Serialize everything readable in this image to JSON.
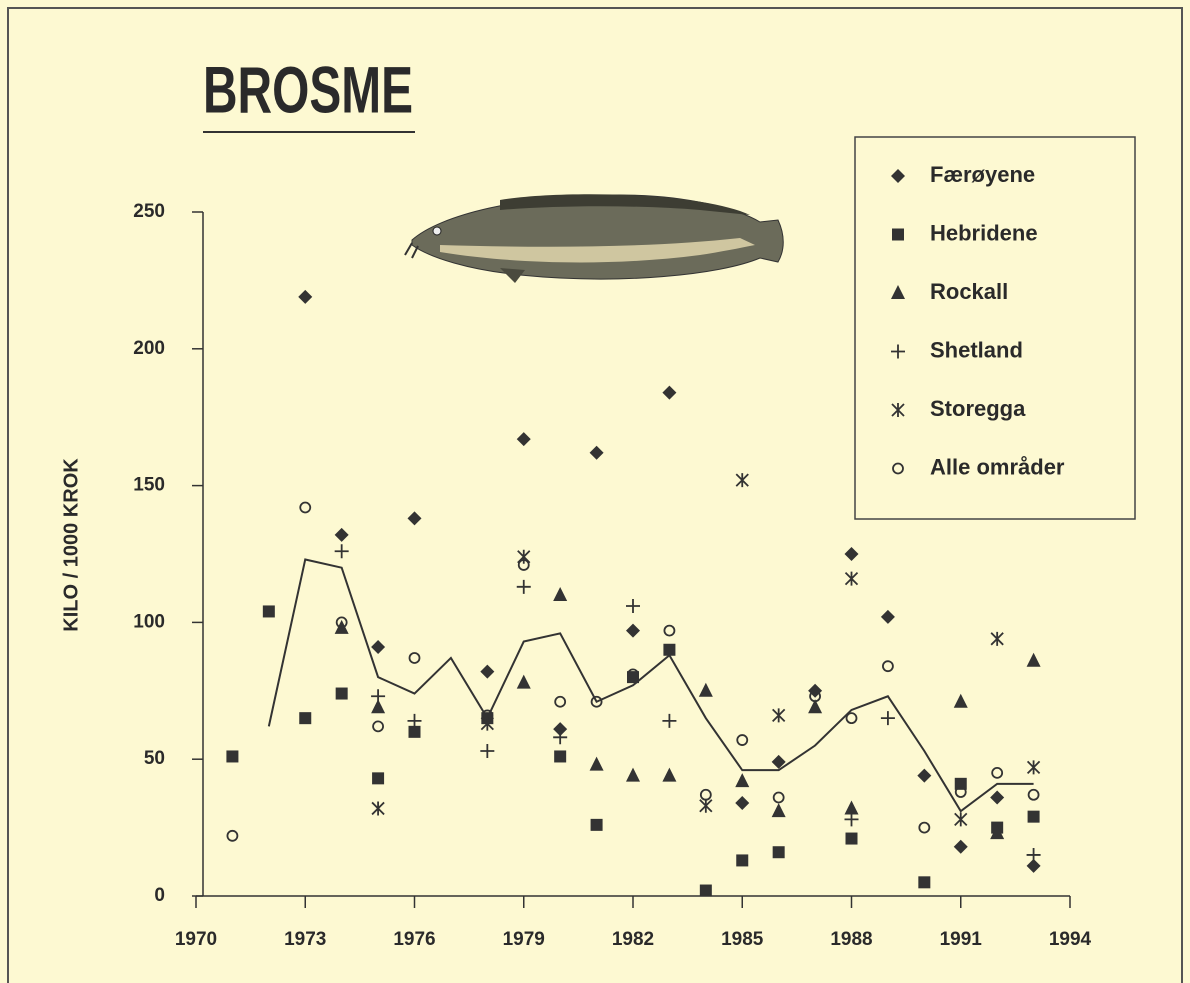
{
  "chart_data": {
    "type": "scatter",
    "title": "BROSME",
    "ylabel": "KILO / 1000 KROK",
    "xlim": [
      1970,
      1994
    ],
    "xticks": [
      1970,
      1973,
      1976,
      1979,
      1982,
      1985,
      1988,
      1991,
      1994
    ],
    "ylim": [
      0,
      250
    ],
    "yticks": [
      0,
      50,
      100,
      150,
      200,
      250
    ],
    "legend": "upper right",
    "series": [
      {
        "name": "Færøyene",
        "marker": "diamond",
        "color": "#333333",
        "x": [
          1973,
          1974,
          1975,
          1976,
          1978,
          1979,
          1980,
          1981,
          1982,
          1983,
          1985,
          1986,
          1987,
          1988,
          1989,
          1990,
          1991,
          1992,
          1993
        ],
        "values": [
          219,
          132,
          91,
          138,
          82,
          167,
          61,
          162,
          97,
          184,
          34,
          49,
          75,
          125,
          102,
          44,
          18,
          36,
          11
        ]
      },
      {
        "name": "Hebridene",
        "marker": "square",
        "color": "#333333",
        "x": [
          1971,
          1972,
          1973,
          1974,
          1975,
          1976,
          1978,
          1980,
          1981,
          1982,
          1983,
          1984,
          1985,
          1986,
          1988,
          1990,
          1991,
          1992,
          1993
        ],
        "values": [
          51,
          104,
          65,
          74,
          43,
          60,
          65,
          51,
          26,
          80,
          90,
          2,
          13,
          16,
          21,
          5,
          41,
          25,
          29
        ]
      },
      {
        "name": "Rockall",
        "marker": "triangle",
        "color": "#333333",
        "x": [
          1974,
          1975,
          1979,
          1980,
          1981,
          1982,
          1983,
          1984,
          1985,
          1986,
          1987,
          1988,
          1991,
          1992,
          1993
        ],
        "values": [
          98,
          69,
          78,
          110,
          48,
          44,
          44,
          75,
          42,
          31,
          69,
          32,
          71,
          23,
          86
        ]
      },
      {
        "name": "Shetland",
        "marker": "plus",
        "color": "#333333",
        "x": [
          1974,
          1975,
          1976,
          1978,
          1979,
          1980,
          1982,
          1983,
          1988,
          1989,
          1993
        ],
        "values": [
          126,
          73,
          64,
          53,
          113,
          58,
          106,
          64,
          28,
          65,
          15
        ]
      },
      {
        "name": "Storegga",
        "marker": "x",
        "color": "#333333",
        "x": [
          1975,
          1978,
          1979,
          1984,
          1985,
          1986,
          1988,
          1991,
          1992,
          1993
        ],
        "values": [
          32,
          63,
          124,
          33,
          152,
          66,
          116,
          28,
          94,
          47
        ]
      },
      {
        "name": "Alle områder",
        "marker": "circle",
        "color": "#333333",
        "x": [
          1971,
          1973,
          1974,
          1975,
          1976,
          1978,
          1979,
          1980,
          1981,
          1982,
          1983,
          1984,
          1985,
          1986,
          1987,
          1988,
          1989,
          1990,
          1991,
          1992,
          1993
        ],
        "values": [
          22,
          142,
          100,
          62,
          87,
          66,
          121,
          71,
          71,
          81,
          97,
          37,
          57,
          36,
          73,
          65,
          84,
          25,
          38,
          45,
          37
        ]
      }
    ],
    "line": {
      "color": "#333333",
      "x": [
        1972,
        1973,
        1974,
        1975,
        1976,
        1977,
        1978,
        1979,
        1980,
        1981,
        1982,
        1983,
        1984,
        1985,
        1986,
        1987,
        1988,
        1989,
        1990,
        1991,
        1992,
        1993
      ],
      "values": [
        62,
        123,
        120,
        80,
        74,
        87,
        65,
        93,
        96,
        71,
        77,
        88,
        65,
        46,
        46,
        55,
        68,
        73,
        53,
        31,
        41,
        41
      ]
    }
  }
}
